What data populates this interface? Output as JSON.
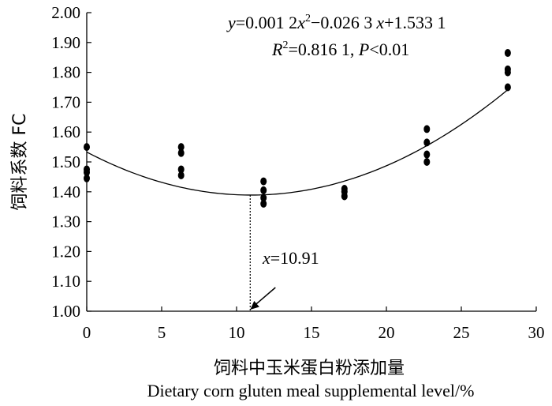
{
  "chart_data": {
    "type": "scatter",
    "xlabel_cn": "饲料中玉米蛋白粉添加量",
    "xlabel_en": "Dietary corn gluten meal supplemental level/%",
    "ylabel": "饲料系数 FC",
    "xlim": [
      0,
      30
    ],
    "ylim": [
      1.0,
      2.0
    ],
    "x_ticks": [
      "0",
      "5",
      "10",
      "15",
      "20",
      "25",
      "30"
    ],
    "y_ticks": [
      "1.00",
      "1.10",
      "1.20",
      "1.30",
      "1.40",
      "1.50",
      "1.60",
      "1.70",
      "1.80",
      "1.90",
      "2.00"
    ],
    "points": [
      {
        "x": 0,
        "y": 1.55
      },
      {
        "x": 0,
        "y": 1.475
      },
      {
        "x": 0,
        "y": 1.465
      },
      {
        "x": 0,
        "y": 1.445
      },
      {
        "x": 6.3,
        "y": 1.55
      },
      {
        "x": 6.3,
        "y": 1.53
      },
      {
        "x": 6.3,
        "y": 1.475
      },
      {
        "x": 6.3,
        "y": 1.455
      },
      {
        "x": 11.8,
        "y": 1.435
      },
      {
        "x": 11.8,
        "y": 1.405
      },
      {
        "x": 11.8,
        "y": 1.38
      },
      {
        "x": 11.8,
        "y": 1.36
      },
      {
        "x": 17.2,
        "y": 1.41
      },
      {
        "x": 17.2,
        "y": 1.4
      },
      {
        "x": 17.2,
        "y": 1.385
      },
      {
        "x": 22.7,
        "y": 1.61
      },
      {
        "x": 22.7,
        "y": 1.565
      },
      {
        "x": 22.7,
        "y": 1.525
      },
      {
        "x": 22.7,
        "y": 1.5
      },
      {
        "x": 28.1,
        "y": 1.865
      },
      {
        "x": 28.1,
        "y": 1.81
      },
      {
        "x": 28.1,
        "y": 1.8
      },
      {
        "x": 28.1,
        "y": 1.75
      }
    ],
    "fit": {
      "a": 0.0012,
      "b": -0.0263,
      "c": 1.5331,
      "x_range": [
        0,
        28.1
      ]
    },
    "vertex_x": 10.91,
    "equation_line1": {
      "y_var": "y",
      "part1": "=0.001 2",
      "x_var1": "x",
      "sup": "2",
      "part2": "−0.026 3",
      "x_var2": "x",
      "part3": "+1.533 1"
    },
    "equation_line2": {
      "r_var": "R",
      "sup": "2",
      "part1": "=0.816 1, ",
      "p_var": "P",
      "part2": "<0.01"
    },
    "annotation": {
      "var": "x",
      "text": "=10.91"
    }
  }
}
